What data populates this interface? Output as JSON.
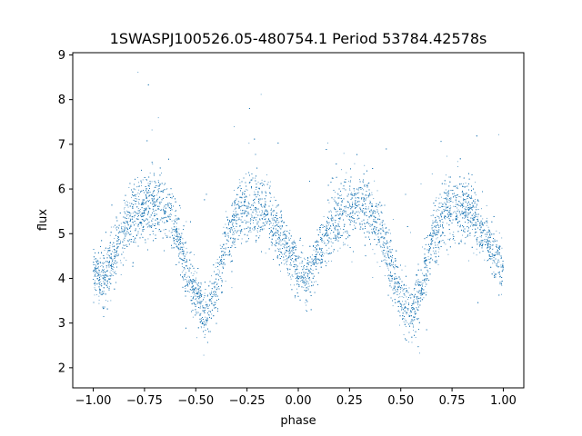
{
  "chart_data": {
    "type": "scatter",
    "title": "1SWASPJ100526.05-480754.1 Period 53784.42578s",
    "xlabel": "phase",
    "ylabel": "flux",
    "xlim": [
      -1.1,
      1.1
    ],
    "ylim": [
      1.55,
      9.05
    ],
    "xticks": [
      -1.0,
      -0.75,
      -0.5,
      -0.25,
      0.0,
      0.25,
      0.5,
      0.75,
      1.0
    ],
    "xtick_labels": [
      "−1.00",
      "−0.75",
      "−0.50",
      "−0.25",
      "0.00",
      "0.25",
      "0.50",
      "0.75",
      "1.00"
    ],
    "yticks": [
      2,
      3,
      4,
      5,
      6,
      7,
      8,
      9
    ],
    "ytick_labels": [
      "2",
      "3",
      "4",
      "5",
      "6",
      "7",
      "8",
      "9"
    ],
    "grid": false,
    "marker_color": "#1f77b4",
    "light_curve": {
      "phase": [
        -1.0,
        -0.95,
        -0.9,
        -0.85,
        -0.8,
        -0.75,
        -0.7,
        -0.65,
        -0.6,
        -0.55,
        -0.5,
        -0.45,
        -0.4,
        -0.35,
        -0.3,
        -0.25,
        -0.2,
        -0.15,
        -0.1,
        -0.05,
        0.0,
        0.05,
        0.1,
        0.15,
        0.2,
        0.25,
        0.3,
        0.35,
        0.4,
        0.45,
        0.5,
        0.55,
        0.6,
        0.65,
        0.7,
        0.75,
        0.8,
        0.85,
        0.9,
        0.95,
        1.0
      ],
      "flux": [
        4.15,
        4.0,
        4.55,
        5.05,
        5.4,
        5.62,
        5.7,
        5.55,
        5.15,
        4.3,
        3.6,
        3.15,
        3.75,
        4.85,
        5.35,
        5.55,
        5.58,
        5.45,
        5.05,
        4.6,
        4.2,
        4.0,
        4.55,
        5.05,
        5.4,
        5.62,
        5.7,
        5.55,
        5.15,
        4.3,
        3.6,
        3.15,
        3.75,
        4.85,
        5.35,
        5.55,
        5.58,
        5.45,
        5.05,
        4.6,
        4.2
      ],
      "scatter": [
        0.3,
        0.3,
        0.32,
        0.34,
        0.36,
        0.38,
        0.38,
        0.36,
        0.34,
        0.32,
        0.3,
        0.3,
        0.32,
        0.34,
        0.36,
        0.36,
        0.36,
        0.34,
        0.32,
        0.3,
        0.3,
        0.3,
        0.32,
        0.34,
        0.36,
        0.38,
        0.38,
        0.36,
        0.34,
        0.32,
        0.3,
        0.3,
        0.32,
        0.34,
        0.36,
        0.36,
        0.36,
        0.34,
        0.32,
        0.3,
        0.3
      ],
      "point_count": 14000
    }
  }
}
